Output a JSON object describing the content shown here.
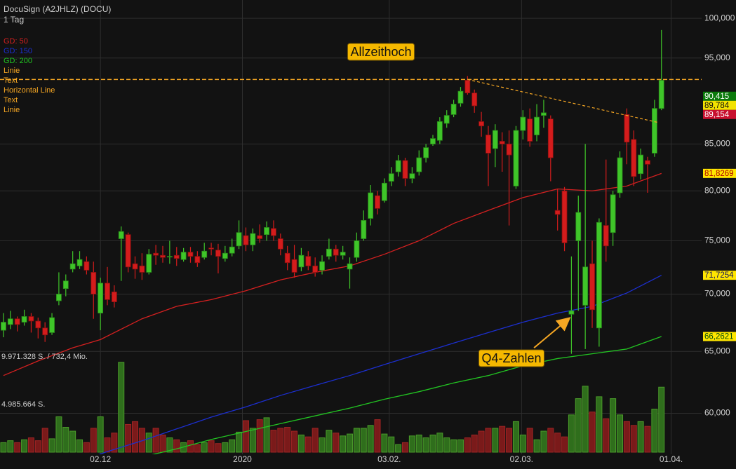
{
  "chart_data": {
    "type": "candlestick",
    "title": "DocuSign (A2JHLZ) (DOCU)",
    "subtitle": "1 Tag",
    "log_scale": true,
    "grid": true,
    "xlim": [
      -0.5,
      100.8
    ],
    "xticks": [
      {
        "value": 14.0,
        "label": "02.12"
      },
      {
        "value": 34.5,
        "label": "2020"
      },
      {
        "value": 55.7,
        "label": "03.02."
      },
      {
        "value": 74.8,
        "label": "02.03."
      },
      {
        "value": 96.4,
        "label": "01.04."
      }
    ],
    "ylim": [
      56.9,
      102.4
    ],
    "yticks": [
      {
        "value": 100,
        "label": "100,000"
      },
      {
        "value": 95,
        "label": "95,000"
      },
      {
        "value": 85,
        "label": "85,000"
      },
      {
        "value": 80,
        "label": "80,000"
      },
      {
        "value": 75,
        "label": "75,000"
      },
      {
        "value": 70,
        "label": "70,000"
      },
      {
        "value": 65,
        "label": "65,000"
      },
      {
        "value": 60,
        "label": "60,000"
      }
    ],
    "up_color": "#3fc529",
    "down_color": "#d41c1c",
    "open": [
      66.8,
      67.3,
      67.8,
      67.5,
      68.0,
      67.6,
      67.0,
      66.6,
      69.4,
      70.5,
      72.3,
      72.6,
      73.0,
      72.0,
      68.3,
      71.0,
      70.2,
      75.2,
      75.6,
      72.8,
      72.6,
      72.0,
      73.8,
      73.6,
      73.5,
      73.6,
      73.2,
      73.9,
      73.5,
      73.4,
      74.3,
      74.1,
      73.3,
      73.8,
      74.5,
      75.5,
      74.6,
      75.5,
      75.6,
      76.2,
      75.2,
      73.8,
      73.2,
      72.5,
      73.5,
      72.6,
      72.2,
      73.5,
      74.2,
      73.6,
      72.3,
      73.4,
      75.2,
      77.2,
      79.5,
      79.0,
      81.0,
      82.0,
      83.2,
      81.3,
      82.0,
      83.5,
      85.0,
      85.4,
      87.3,
      88.3,
      89.6,
      92.3,
      90.8,
      87.5,
      86.0,
      84.5,
      85.3,
      85.0,
      80.5,
      86.5,
      87.8,
      86.0,
      88.2,
      87.8,
      78.0,
      80.0,
      68.2,
      75.0,
      69.0,
      72.8,
      67.0,
      76.5,
      75.8,
      79.8,
      88.3,
      85.5,
      81.8,
      83.2,
      84.0,
      89.0
    ],
    "high": [
      68.3,
      68.5,
      68.0,
      68.6,
      68.3,
      67.9,
      67.5,
      68.3,
      72.0,
      71.8,
      74.0,
      74.0,
      73.5,
      73.0,
      71.5,
      72.5,
      70.8,
      76.4,
      75.8,
      73.5,
      73.8,
      74.2,
      74.6,
      74.5,
      75.0,
      74.4,
      74.3,
      74.4,
      74.0,
      74.8,
      74.8,
      74.7,
      74.5,
      75.2,
      77.0,
      76.3,
      76.2,
      76.6,
      76.9,
      77.0,
      75.7,
      74.5,
      74.6,
      74.3,
      74.0,
      73.4,
      73.6,
      75.2,
      74.6,
      74.5,
      73.4,
      75.8,
      78.0,
      80.6,
      80.0,
      81.3,
      82.5,
      83.8,
      83.5,
      82.5,
      84.3,
      85.0,
      86.0,
      88.0,
      88.8,
      90.0,
      91.5,
      92.8,
      91.2,
      88.6,
      87.0,
      87.2,
      86.3,
      86.5,
      87.0,
      88.8,
      89.0,
      89.5,
      90.0,
      88.2,
      80.2,
      80.4,
      73.5,
      79.5,
      85.0,
      75.0,
      77.2,
      83.3,
      80.0,
      84.2,
      89.0,
      86.5,
      84.5,
      83.6,
      90.0,
      98.5
    ],
    "low": [
      66.2,
      66.9,
      66.7,
      67.2,
      66.6,
      66.1,
      65.8,
      66.4,
      69.0,
      69.8,
      72.0,
      72.3,
      71.8,
      67.8,
      66.8,
      69.0,
      68.8,
      71.2,
      72.0,
      71.4,
      71.3,
      71.8,
      72.7,
      72.9,
      72.8,
      72.6,
      73.0,
      72.9,
      72.5,
      73.2,
      73.6,
      71.9,
      73.0,
      73.5,
      74.2,
      74.0,
      74.0,
      74.8,
      75.0,
      75.0,
      73.6,
      72.2,
      71.5,
      72.1,
      72.2,
      71.6,
      71.8,
      73.2,
      73.0,
      73.2,
      70.5,
      73.0,
      75.0,
      76.5,
      77.6,
      78.8,
      80.5,
      81.5,
      80.5,
      80.8,
      81.6,
      83.0,
      84.8,
      85.0,
      86.8,
      88.0,
      89.2,
      90.6,
      88.5,
      85.8,
      80.5,
      82.5,
      82.0,
      76.5,
      80.2,
      85.5,
      84.7,
      85.3,
      86.8,
      81.0,
      76.0,
      74.0,
      64.8,
      68.5,
      65.2,
      67.0,
      65.4,
      73.0,
      74.5,
      79.3,
      82.8,
      80.5,
      81.2,
      79.8,
      83.6,
      88.8
    ],
    "close": [
      67.5,
      67.8,
      67.3,
      68.0,
      67.6,
      67.0,
      66.4,
      67.9,
      70.0,
      71.2,
      72.8,
      73.2,
      72.2,
      70.0,
      71.0,
      69.5,
      69.3,
      75.9,
      72.5,
      72.3,
      72.0,
      73.7,
      73.6,
      73.4,
      73.5,
      73.3,
      73.9,
      73.5,
      72.9,
      74.0,
      74.2,
      73.5,
      73.8,
      74.4,
      75.8,
      74.6,
      75.7,
      75.2,
      76.3,
      75.5,
      74.2,
      72.9,
      72.0,
      73.6,
      72.6,
      72.0,
      73.0,
      74.2,
      73.6,
      73.9,
      72.8,
      75.0,
      77.0,
      79.8,
      78.2,
      80.8,
      81.8,
      83.2,
      81.3,
      81.8,
      83.5,
      84.6,
      85.6,
      87.5,
      88.2,
      89.5,
      91.0,
      90.8,
      89.3,
      87.0,
      84.0,
      86.5,
      85.0,
      83.8,
      86.5,
      88.0,
      85.3,
      88.0,
      88.5,
      83.5,
      77.6,
      74.8,
      68.5,
      77.8,
      72.5,
      68.6,
      76.8,
      74.5,
      79.6,
      83.5,
      85.2,
      81.5,
      83.8,
      82.8,
      89.0,
      92.3
    ],
    "volume": {
      "values": [
        1000000,
        1200000,
        1000000,
        1300000,
        1500000,
        1200000,
        2500000,
        1400000,
        3700000,
        2600000,
        2200000,
        1300000,
        1000000,
        2500000,
        3700000,
        1500000,
        2000000,
        9400000,
        2900000,
        3200000,
        2500000,
        2000000,
        2500000,
        1800000,
        1500000,
        1300000,
        1000000,
        1200000,
        800000,
        1000000,
        1200000,
        900000,
        1000000,
        1300000,
        2100000,
        3300000,
        2500000,
        3400000,
        3600000,
        2300000,
        2500000,
        2600000,
        2200000,
        1800000,
        1600000,
        2500000,
        1500000,
        2300000,
        2000000,
        1700000,
        1900000,
        2500000,
        2500000,
        2800000,
        3400000,
        1900000,
        1600000,
        800000,
        1000000,
        1700000,
        1800000,
        1500000,
        1800000,
        2000000,
        1500000,
        1300000,
        1300000,
        1500000,
        1800000,
        2200000,
        2500000,
        2500000,
        2700000,
        2500000,
        3200000,
        1800000,
        2500000,
        1300000,
        2200000,
        2500000,
        2000000,
        1600000,
        3900000,
        5600000,
        6900000,
        4200000,
        5800000,
        3500000,
        5600000,
        3900000,
        3200000,
        2800000,
        3200000,
        2700000,
        4500000,
        6800000
      ],
      "ylim": [
        0,
        9971328
      ],
      "yticks": [
        {
          "value": 9971328,
          "label": "9.971.328 S. / 732,4 Mio."
        },
        {
          "value": 4985664,
          "label": "4.985.664 S."
        }
      ],
      "up_color": "#2f6e1c",
      "down_color": "#7a1a1a"
    },
    "series": [
      {
        "name": "GD: 50",
        "color": "#d42020",
        "x": [
          0,
          5,
          10,
          14,
          20,
          25,
          30,
          35,
          40,
          45,
          50,
          55,
          60,
          65,
          70,
          75,
          80,
          85,
          90,
          95
        ],
        "values": [
          63.0,
          64.2,
          65.3,
          66.0,
          67.8,
          68.9,
          69.5,
          70.3,
          71.3,
          72.0,
          72.6,
          73.7,
          75.0,
          76.7,
          78.0,
          79.3,
          80.2,
          80.0,
          80.5,
          81.8269
        ]
      },
      {
        "name": "GD: 150",
        "color": "#1c2fd0",
        "x": [
          10,
          15,
          20,
          25,
          30,
          35,
          40,
          45,
          50,
          55,
          60,
          65,
          70,
          75,
          80,
          85,
          90,
          95
        ],
        "values": [
          56.2,
          57.1,
          57.9,
          58.8,
          59.7,
          60.5,
          61.4,
          62.2,
          63.0,
          63.9,
          64.8,
          65.7,
          66.6,
          67.5,
          68.3,
          68.9,
          70.1,
          71.7254
        ]
      },
      {
        "name": "GD: 200",
        "color": "#22c422",
        "x": [
          15,
          20,
          25,
          30,
          35,
          40,
          45,
          50,
          55,
          60,
          65,
          70,
          75,
          80,
          85,
          90,
          95
        ],
        "values": [
          56.2,
          56.7,
          57.3,
          58.0,
          58.6,
          59.2,
          59.8,
          60.4,
          61.1,
          61.7,
          62.4,
          63.0,
          63.8,
          64.4,
          64.8,
          65.2,
          66.2621
        ]
      }
    ],
    "drawings_color": "#f5a623",
    "drawings": [
      {
        "kind": "line",
        "name": "Linie",
        "x": [
          67,
          94.5
        ],
        "values": [
          92.4,
          87.4
        ]
      },
      {
        "kind": "text",
        "name": "Text",
        "text": "Allzeithoch"
      },
      {
        "kind": "hline",
        "name": "Horizontal Line",
        "value": 92.4
      },
      {
        "kind": "text",
        "name": "Text",
        "text": "Q4-Zahlen"
      },
      {
        "kind": "arrow",
        "name": "Linie",
        "x": [
          76.6,
          81.6
        ],
        "values": [
          65.3,
          67.8
        ]
      }
    ],
    "markers": [
      {
        "value": 90.415,
        "label": "90,415",
        "color": "#0b7a0b",
        "text_color": "#ffffff"
      },
      {
        "value": 89.784,
        "label": "89,784",
        "color": "#f2e200",
        "text_color": "#111111"
      },
      {
        "value": 89.154,
        "label": "89,154",
        "color": "#c8102e",
        "text_color": "#ffffff"
      },
      {
        "value": 81.8269,
        "label": "81,8269",
        "color": "#ffe600",
        "text_color": "#b00000"
      },
      {
        "value": 71.7254,
        "label": "71,7254",
        "color": "#ffe600",
        "text_color": "#101060"
      },
      {
        "value": 66.2621,
        "label": "66,2621",
        "color": "#ffe600",
        "text_color": "#0a500a"
      }
    ]
  }
}
